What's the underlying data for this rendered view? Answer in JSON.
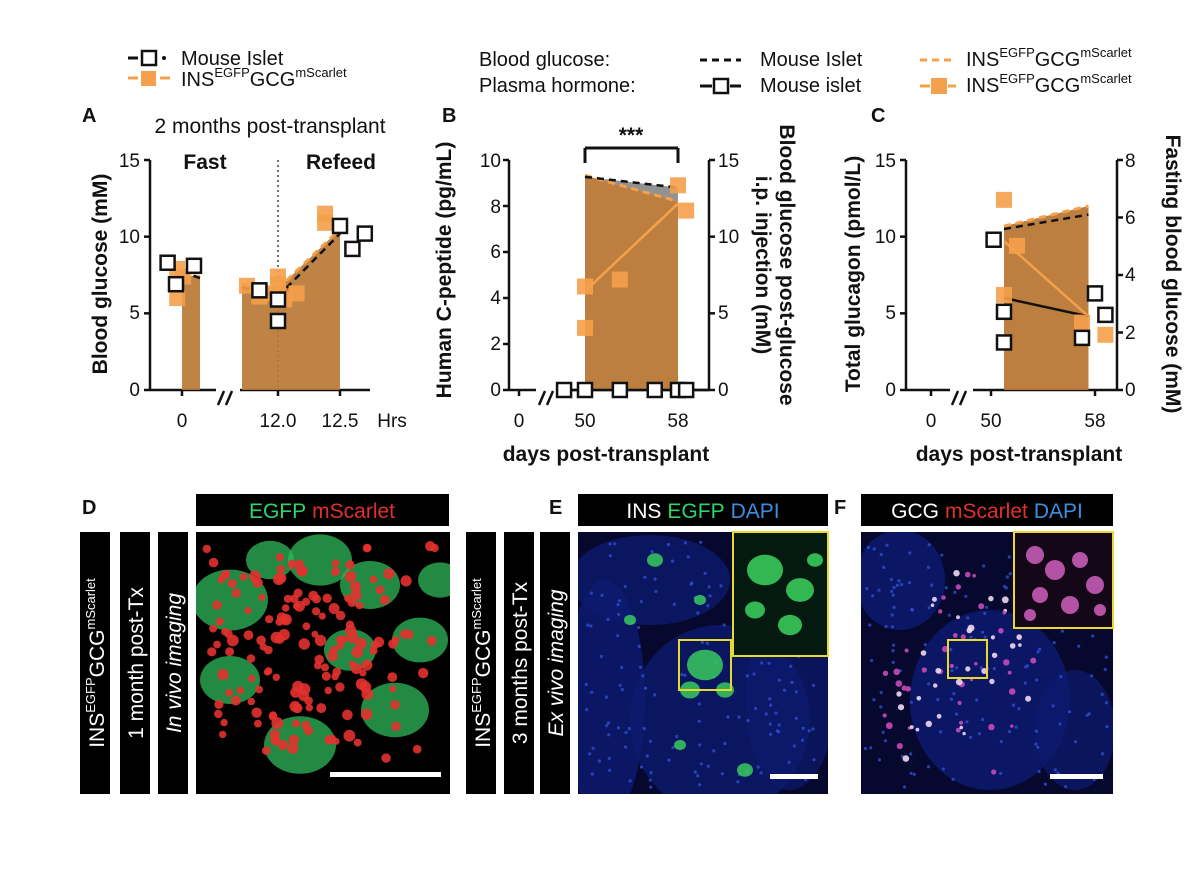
{
  "colors": {
    "orange": "#f5a04a",
    "fill_orange": "#b97835",
    "fill_grey": "#7f7f7f",
    "black": "#111111",
    "egfp_green": "#2fd36b",
    "mscarlet_red": "#e0302e",
    "dapi_blue": "#3a8fe0",
    "roi_yellow": "#e8d830"
  },
  "legend_a": {
    "mouse": "Mouse Islet",
    "ins_base": "INS",
    "ins_sup1": "EGFP",
    "ins_mid": "GCG",
    "ins_sup2": "mScarlet"
  },
  "legend_bc": {
    "blood_glucose_label": "Blood glucose:",
    "plasma_label": "Plasma hormone:",
    "mouse_bg": "Mouse Islet",
    "mouse_ph": "Mouse islet",
    "ins_base": "INS",
    "ins_sup1": "EGFP",
    "ins_mid": "GCG",
    "ins_sup2": "mScarlet"
  },
  "panel_a": {
    "label": "A",
    "title": "2 months post-transplant",
    "fast": "Fast",
    "refeed": "Refeed",
    "ylabel": "Blood glucose (mM)",
    "yticks": [
      "0",
      "5",
      "10",
      "15"
    ],
    "xticks": [
      "0",
      "12.0",
      "12.5"
    ],
    "xunit": "Hrs"
  },
  "panel_b": {
    "label": "B",
    "sig": "***",
    "ylabel": "Human C-peptide (pg/mL)",
    "y2label_1": "Blood glucose post-glucose",
    "y2label_2": "i.p. injection (mM)",
    "xlabel": "days post-transplant",
    "yticks": [
      "0",
      "2",
      "4",
      "6",
      "8",
      "10"
    ],
    "y2ticks": [
      "0",
      "5",
      "10",
      "15"
    ],
    "xticks": [
      "0",
      "50",
      "58"
    ]
  },
  "panel_c": {
    "label": "C",
    "ylabel": "Total glucagon (pmol/L)",
    "y2label": "Fasting blood glucose (mM)",
    "xlabel": "days post-transplant",
    "yticks": [
      "0",
      "5",
      "10",
      "15"
    ],
    "y2ticks": [
      "0",
      "2",
      "4",
      "6",
      "8"
    ],
    "xticks": [
      "0",
      "50",
      "58"
    ]
  },
  "panel_d": {
    "label": "D",
    "header_green": "EGFP",
    "header_red": "mScarlet",
    "tag_base": "INS",
    "tag_sup1": "EGFP",
    "tag_mid": "GCG",
    "tag_sup2": "mScarlet",
    "time": "1 month post-Tx",
    "mode": "In vivo imaging"
  },
  "panel_e": {
    "label": "E",
    "header_ins": "INS",
    "header_egfp": "EGFP",
    "header_dapi": "DAPI",
    "tag_base": "INS",
    "tag_sup1": "EGFP",
    "tag_mid": "GCG",
    "tag_sup2": "mScarlet",
    "time": "3 months post-Tx",
    "mode": "Ex vivo imaging"
  },
  "panel_f": {
    "label": "F",
    "header_gcg": "GCG",
    "header_mscarlet": "mScarlet",
    "header_dapi": "DAPI"
  },
  "chart_data": [
    {
      "panel": "A",
      "type": "scatter",
      "title": "2 months post-transplant",
      "ylabel": "Blood glucose (mM)",
      "ylim": [
        0,
        15
      ],
      "x_unit": "Hrs",
      "series": [
        {
          "name": "Mouse Islet",
          "marker": "open-square",
          "line": "dashed",
          "x": [
            -0.12,
            -0.05,
            0.1,
            11.85,
            12.0,
            12.0,
            12.5,
            12.6,
            12.7
          ],
          "y": [
            8.3,
            6.9,
            8.1,
            6.5,
            4.5,
            5.9,
            10.7,
            9.2,
            10.2
          ],
          "fit_fast": {
            "x": [
              0,
              0.15
            ],
            "y": [
              7.7,
              7.3
            ]
          },
          "fit_refeed": {
            "x": [
              11.7,
              12.0,
              12.5
            ],
            "y": [
              6.7,
              6.1,
              10.2
            ]
          }
        },
        {
          "name": "INS EGFP GCG mScarlet",
          "marker": "filled-square",
          "line": "dashed",
          "x": [
            -0.04,
            -0.04,
            0.01,
            11.75,
            11.85,
            11.95,
            12.0,
            12.0,
            12.05,
            12.15,
            12.38,
            12.38
          ],
          "y": [
            7.9,
            6.0,
            7.4,
            6.8,
            6.1,
            6.3,
            7.4,
            6.9,
            5.9,
            6.3,
            11.5,
            10.9
          ],
          "fit_fast": {
            "x": [
              0,
              0.15
            ],
            "y": [
              7.5,
              7.4
            ]
          },
          "fit_refeed": {
            "x": [
              11.7,
              12.0,
              12.5
            ],
            "y": [
              6.9,
              6.6,
              10.5
            ]
          }
        }
      ]
    },
    {
      "panel": "B",
      "type": "scatter",
      "xlabel": "days post-transplant",
      "ylabel": "Human C-peptide (pg/mL)",
      "y2label": "Blood glucose post-glucose i.p. injection (mM)",
      "ylim": [
        0,
        10
      ],
      "y2lim": [
        0,
        15
      ],
      "x_ticks": [
        0,
        50,
        58
      ],
      "significance": "***",
      "series": [
        {
          "name": "Mouse islet plasma hormone",
          "marker": "open-square",
          "axis": "left",
          "x": [
            48.2,
            50,
            53,
            56,
            58,
            58.7
          ],
          "y": [
            0,
            0,
            0,
            0,
            0,
            0
          ]
        },
        {
          "name": "INS EGFP GCG mScarlet plasma hormone",
          "marker": "filled-square",
          "axis": "left",
          "x": [
            50,
            50,
            53,
            58,
            58.7
          ],
          "y": [
            4.5,
            2.7,
            4.8,
            8.9,
            7.8
          ],
          "fit": {
            "x": [
              50,
              58
            ],
            "y": [
              4.3,
              8.1
            ]
          }
        },
        {
          "name": "Mouse Islet blood glucose",
          "line": "dashed",
          "axis": "right",
          "x": [
            50,
            58
          ],
          "y": [
            13.9,
            13.2
          ]
        },
        {
          "name": "INS EGFP GCG mScarlet blood glucose",
          "line": "dashed",
          "axis": "right",
          "x": [
            50,
            58
          ],
          "y": [
            14.0,
            12.3
          ]
        }
      ]
    },
    {
      "panel": "C",
      "type": "scatter",
      "xlabel": "days post-transplant",
      "ylabel": "Total glucagon (pmol/L)",
      "y2label": "Fasting blood glucose (mM)",
      "ylim": [
        0,
        15
      ],
      "y2lim": [
        0,
        8
      ],
      "x_ticks": [
        0,
        50,
        58
      ],
      "series": [
        {
          "name": "Mouse islet plasma hormone",
          "marker": "open-square",
          "axis": "left",
          "x": [
            50.2,
            51,
            51,
            57,
            58,
            58.8
          ],
          "y": [
            9.8,
            5.1,
            3.1,
            3.4,
            6.3,
            4.9
          ],
          "fit": {
            "x": [
              51,
              57.5
            ],
            "y": [
              6.0,
              4.8
            ]
          }
        },
        {
          "name": "INS EGFP GCG mScarlet plasma hormone",
          "marker": "filled-square",
          "axis": "left",
          "x": [
            51,
            51,
            52,
            57,
            58.8
          ],
          "y": [
            12.4,
            6.2,
            9.4,
            4.4,
            3.6
          ],
          "fit": {
            "x": [
              51,
              57.5
            ],
            "y": [
              9.7,
              4.8
            ]
          }
        },
        {
          "name": "Mouse Islet blood glucose",
          "line": "dashed",
          "axis": "right",
          "x": [
            51,
            57.5
          ],
          "y": [
            5.6,
            6.1
          ]
        },
        {
          "name": "INS EGFP GCG mScarlet blood glucose",
          "line": "dashed",
          "axis": "right",
          "x": [
            51,
            57.5
          ],
          "y": [
            5.7,
            6.4
          ]
        }
      ]
    }
  ]
}
